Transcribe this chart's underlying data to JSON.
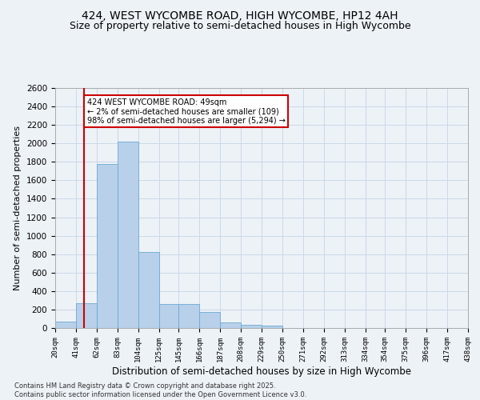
{
  "title": "424, WEST WYCOMBE ROAD, HIGH WYCOMBE, HP12 4AH",
  "subtitle": "Size of property relative to semi-detached houses in High Wycombe",
  "xlabel": "Distribution of semi-detached houses by size in High Wycombe",
  "ylabel": "Number of semi-detached properties",
  "bar_color": "#b8d0ea",
  "bar_edge_color": "#6aaad4",
  "grid_color": "#c8d8e8",
  "vline_color": "#cc0000",
  "vline_x": 49,
  "annotation_text": "424 WEST WYCOMBE ROAD: 49sqm\n← 2% of semi-detached houses are smaller (109)\n98% of semi-detached houses are larger (5,294) →",
  "annotation_box_color": "#ffffff",
  "annotation_border_color": "#cc0000",
  "bins": [
    20,
    41,
    62,
    83,
    104,
    125,
    145,
    166,
    187,
    208,
    229,
    250,
    271,
    292,
    313,
    334,
    354,
    375,
    396,
    417,
    438
  ],
  "bin_labels": [
    "20sqm",
    "41sqm",
    "62sqm",
    "83sqm",
    "104sqm",
    "125sqm",
    "145sqm",
    "166sqm",
    "187sqm",
    "208sqm",
    "229sqm",
    "250sqm",
    "271sqm",
    "292sqm",
    "313sqm",
    "334sqm",
    "354sqm",
    "375sqm",
    "396sqm",
    "417sqm",
    "438sqm"
  ],
  "counts": [
    70,
    270,
    1780,
    2020,
    820,
    260,
    260,
    175,
    65,
    35,
    30,
    0,
    0,
    0,
    0,
    0,
    0,
    0,
    0,
    0
  ],
  "ylim": [
    0,
    2600
  ],
  "yticks": [
    0,
    200,
    400,
    600,
    800,
    1000,
    1200,
    1400,
    1600,
    1800,
    2000,
    2200,
    2400,
    2600
  ],
  "footer": "Contains HM Land Registry data © Crown copyright and database right 2025.\nContains public sector information licensed under the Open Government Licence v3.0.",
  "bg_color": "#edf2f7",
  "title_fontsize": 10,
  "subtitle_fontsize": 9
}
